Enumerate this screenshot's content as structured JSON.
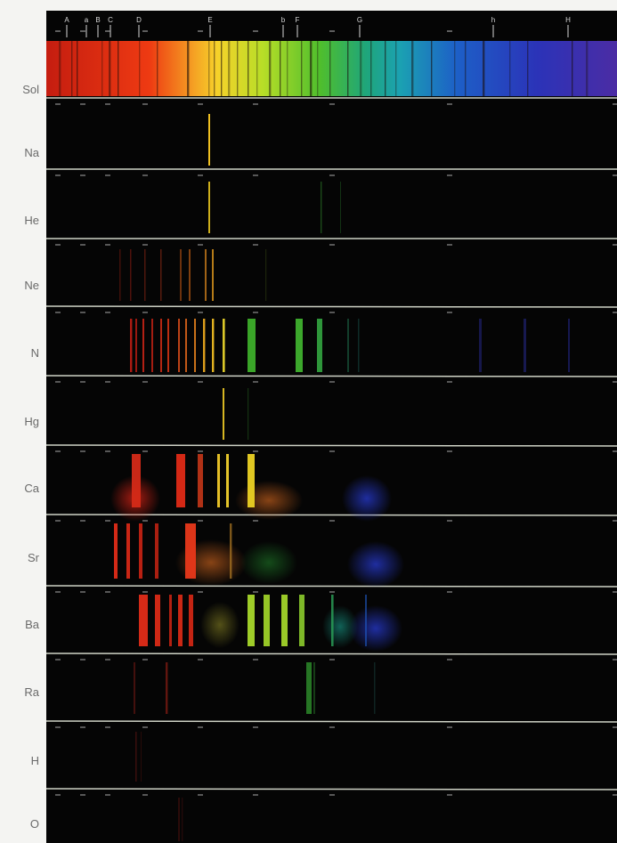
{
  "labels": {
    "sol": "Sol",
    "na": "Na",
    "he": "He",
    "ne": "Ne",
    "n": "N",
    "hg": "Hg",
    "ca": "Ca",
    "sr": "Sr",
    "ba": "Ba",
    "ra": "Ra",
    "h": "H",
    "o": "O"
  },
  "solar_markers": [
    "A",
    "a",
    "B",
    "C",
    "D",
    "E",
    "b",
    "F",
    "G",
    "h",
    "H"
  ],
  "colors": {
    "background": "#f4f4f2",
    "spectrum_background": "#050505",
    "divider": "#cfd3c6",
    "label_text": "#6a6a6a"
  }
}
